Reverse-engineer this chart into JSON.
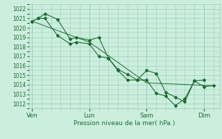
{
  "title": "Pression niveau de la mer( hPa )",
  "bg_color": "#cceedd",
  "grid_color": "#99ccbb",
  "line_color": "#1a6b30",
  "marker_color": "#1a6b30",
  "ylim": [
    1011.5,
    1022.5
  ],
  "yticks": [
    1012,
    1013,
    1014,
    1015,
    1016,
    1017,
    1018,
    1019,
    1020,
    1021,
    1022
  ],
  "day_labels": [
    "Ven",
    "Lun",
    "Sam",
    "Dim"
  ],
  "day_positions": [
    0,
    36,
    72,
    108
  ],
  "xlim": [
    -2,
    118
  ],
  "line1_x": [
    0,
    4,
    8,
    16,
    24,
    28,
    36,
    42,
    48,
    54,
    60,
    66,
    72,
    78,
    84,
    90,
    96,
    102,
    108
  ],
  "line1_y": [
    1020.7,
    1021.0,
    1021.0,
    1019.2,
    1018.3,
    1018.5,
    1018.3,
    1017.0,
    1016.8,
    1015.5,
    1014.5,
    1014.5,
    1015.5,
    1015.2,
    1013.2,
    1012.7,
    1012.2,
    1014.4,
    1014.5
  ],
  "line2_x": [
    0,
    4,
    8,
    16,
    24,
    28,
    36,
    42,
    48,
    54,
    60,
    66,
    72,
    78,
    84,
    90,
    96,
    102,
    108,
    114
  ],
  "line2_y": [
    1020.7,
    1021.0,
    1021.5,
    1020.9,
    1018.8,
    1019.0,
    1018.7,
    1019.0,
    1016.8,
    1015.6,
    1015.1,
    1014.5,
    1014.5,
    1013.1,
    1012.8,
    1011.8,
    1012.5,
    1014.4,
    1013.8,
    1013.9
  ],
  "line3_x": [
    0,
    36,
    72,
    114
  ],
  "line3_y": [
    1020.7,
    1018.5,
    1014.2,
    1013.9
  ]
}
